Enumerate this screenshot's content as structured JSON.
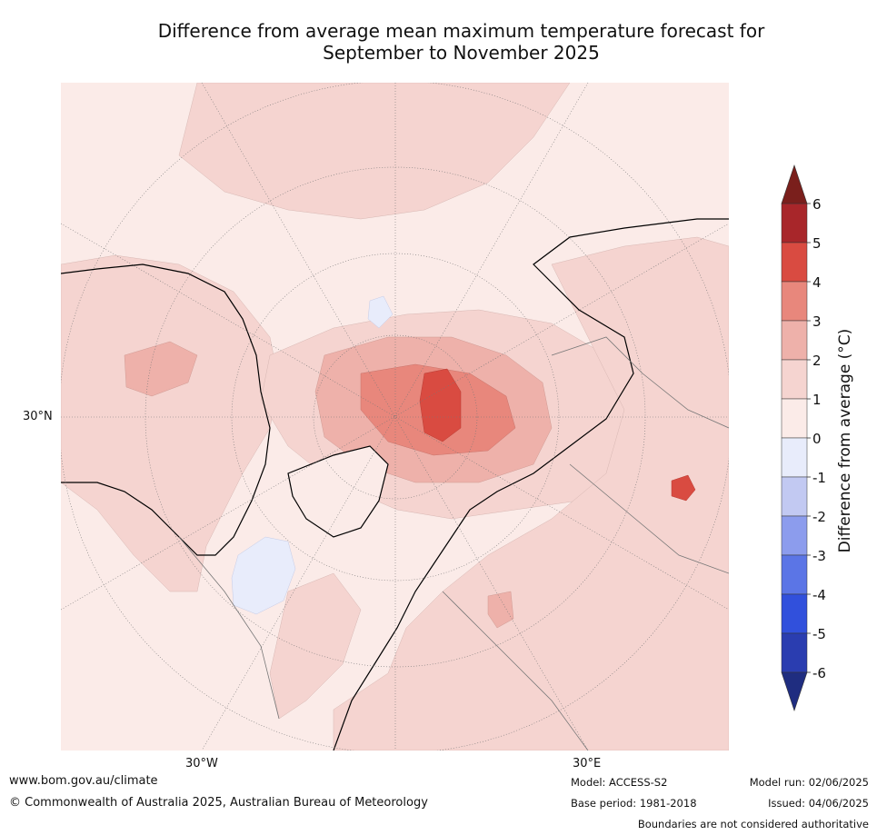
{
  "title": {
    "line1": "Difference from average mean maximum temperature forecast for",
    "line2": "September to November 2025"
  },
  "map": {
    "projection": "north-polar-stereographic",
    "grid_labels": {
      "lat": "30°N",
      "lon_west": "30°W",
      "lon_east": "30°E"
    },
    "background_color": "#fbebe8"
  },
  "colorbar": {
    "label": "Difference from average (°C)",
    "ticks": [
      "6",
      "5",
      "4",
      "3",
      "2",
      "1",
      "0",
      "-1",
      "-2",
      "-3",
      "-4",
      "-5",
      "-6"
    ],
    "bins": [
      {
        "range": "5 to 6",
        "color": "#a8262a"
      },
      {
        "range": "4 to 5",
        "color": "#d94b41"
      },
      {
        "range": "3 to 4",
        "color": "#e8877c"
      },
      {
        "range": "2 to 3",
        "color": "#eeb1aa"
      },
      {
        "range": "1 to 2",
        "color": "#f5d4d0"
      },
      {
        "range": "0 to 1",
        "color": "#fbebe8"
      },
      {
        "range": "-1 to 0",
        "color": "#e8ecfb"
      },
      {
        "range": "-2 to -1",
        "color": "#c2c9f2"
      },
      {
        "range": "-3 to -2",
        "color": "#8c9ced"
      },
      {
        "range": "-4 to -3",
        "color": "#5b75e6"
      },
      {
        "range": "-5 to -4",
        "color": "#3150dc"
      },
      {
        "range": "-6 to -5",
        "color": "#2a3db0"
      }
    ],
    "over_color": "#7a1f1c",
    "under_color": "#1f2d80"
  },
  "footer": {
    "url": "www.bom.gov.au/climate",
    "copyright": "© Commonwealth of Australia 2025, Australian Bureau of Meteorology",
    "model": "Model: ACCESS-S2",
    "base_period": "Base period: 1981-2018",
    "model_run": "Model run: 02/06/2025",
    "issued": "Issued: 04/06/2025",
    "disclaimer": "Boundaries are not considered authoritative"
  }
}
